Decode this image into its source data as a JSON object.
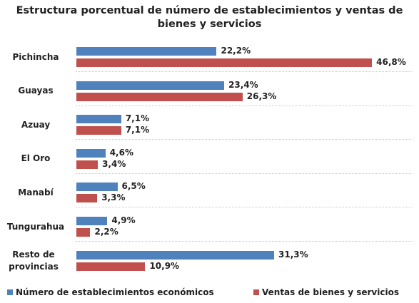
{
  "chart_data": {
    "type": "bar",
    "orientation": "horizontal",
    "title": "Estructura porcentual de número de establecimientos y ventas de bienes y servicios",
    "categories": [
      "Pichincha",
      "Guayas",
      "Azuay",
      "El Oro",
      "Manabí",
      "Tungurahua",
      "Resto de provincias"
    ],
    "series": [
      {
        "name": "Número de establecimientos económicos",
        "color": "#4f81bd",
        "values": [
          22.2,
          23.4,
          7.1,
          4.6,
          6.5,
          4.9,
          31.3
        ],
        "value_labels": [
          "22,2%",
          "23,4%",
          "7,1%",
          "4,6%",
          "6,5%",
          "4,9%",
          "31,3%"
        ]
      },
      {
        "name": "Ventas de bienes y servicios",
        "color": "#c0504d",
        "values": [
          46.8,
          26.3,
          7.1,
          3.4,
          3.3,
          2.2,
          10.9
        ],
        "value_labels": [
          "46,8%",
          "26,3%",
          "7,1%",
          "3,4%",
          "3,3%",
          "2,2%",
          "10,9%"
        ]
      }
    ],
    "legend": "bottom"
  }
}
